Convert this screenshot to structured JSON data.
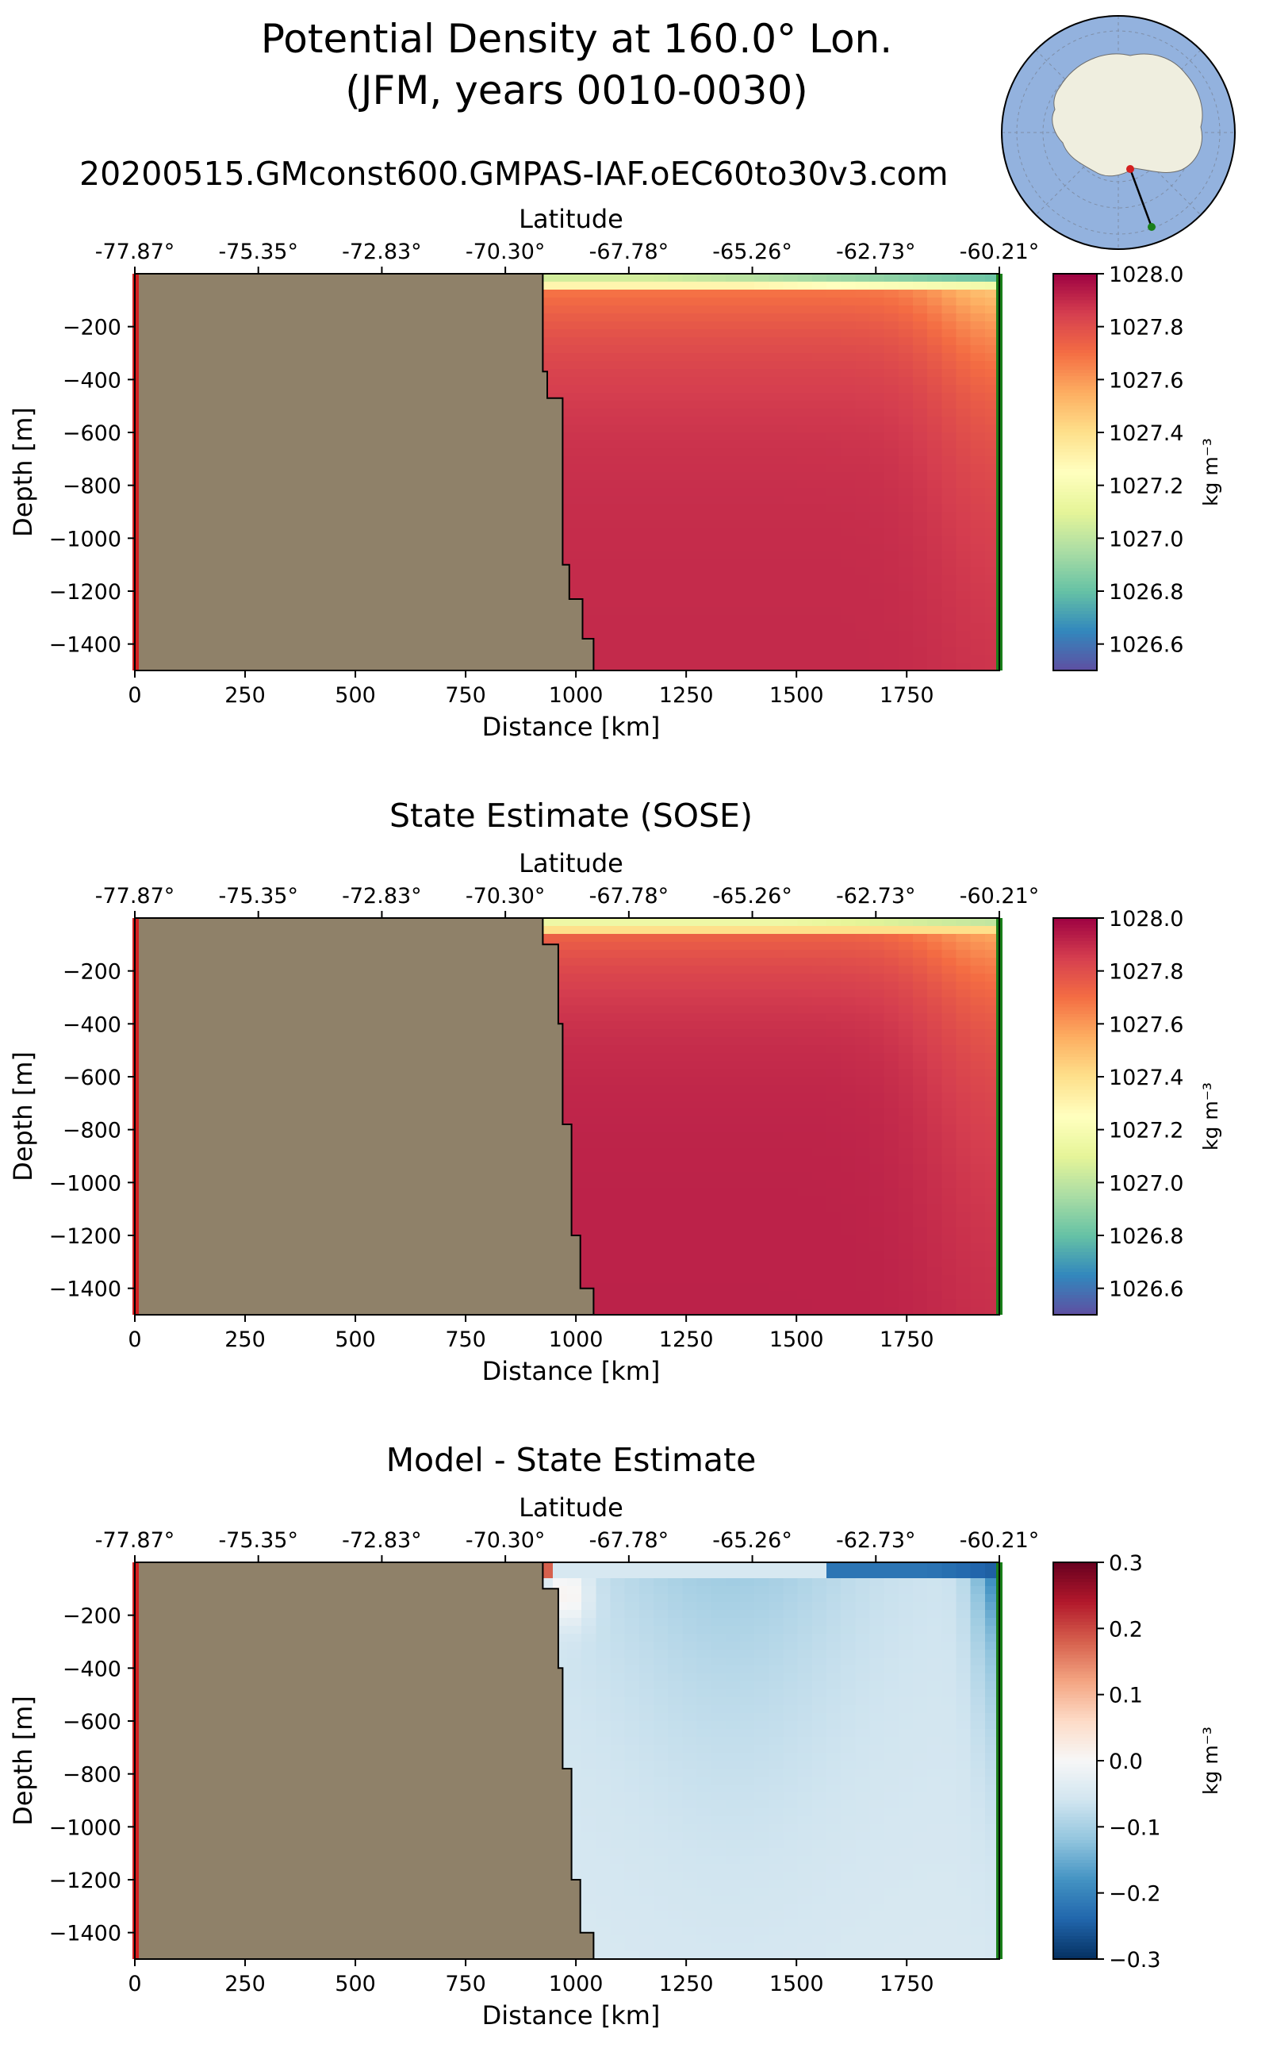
{
  "figure": {
    "title_line1": "Potential Density at 160.0° Lon.",
    "title_line2": "(JFM, years 0010-0030)",
    "subtitle": "20200515.GMconst600.GMPAS-IAF.oEC60to30v3.com"
  },
  "colors": {
    "land": "#8f8169",
    "start_marker": "#d42020",
    "end_marker": "#1a7f1a",
    "map_ocean": "#93b2de",
    "map_land": "#efeedf",
    "spectral": [
      "#5e4fa2",
      "#3288bd",
      "#66c2a5",
      "#abdda4",
      "#e6f598",
      "#ffffbf",
      "#fee08b",
      "#fdae61",
      "#f46d43",
      "#d53e4f",
      "#9e0142"
    ],
    "rdbu_r": [
      "#053061",
      "#2166ac",
      "#4393c3",
      "#92c5de",
      "#d1e5f0",
      "#f7f7f7",
      "#fddbc7",
      "#f4a582",
      "#d6604d",
      "#b2182b",
      "#67001f"
    ]
  },
  "icons": {
    "map": "antarctica-polar-map-icon"
  },
  "chart_data": [
    {
      "type": "heatmap",
      "title": "",
      "xlabel": "Distance [km]",
      "ylabel": "Depth [m]",
      "top_xlabel": "Latitude",
      "xlim": [
        0,
        1960
      ],
      "ylim": [
        -1500,
        0
      ],
      "xticks": [
        0,
        250,
        500,
        750,
        1000,
        1250,
        1500,
        1750
      ],
      "xtick_labels": [
        "0",
        "250",
        "500",
        "750",
        "1000",
        "1250",
        "1500",
        "1750"
      ],
      "yticks": [
        -200,
        -400,
        -600,
        -800,
        -1000,
        -1200,
        -1400
      ],
      "ytick_labels": [
        "−200",
        "−400",
        "−600",
        "−800",
        "−1000",
        "−1200",
        "−1400"
      ],
      "top_ticks": [
        0,
        280,
        560,
        840,
        1120,
        1400,
        1680,
        1960
      ],
      "top_tick_labels": [
        "-77.87°",
        "-75.35°",
        "-72.83°",
        "-70.30°",
        "-67.78°",
        "-65.26°",
        "-62.73°",
        "-60.21°"
      ],
      "bathymetry": [
        [
          0,
          0
        ],
        [
          925,
          0
        ],
        [
          925,
          -370
        ],
        [
          935,
          -370
        ],
        [
          935,
          -470
        ],
        [
          970,
          -470
        ],
        [
          970,
          -1100
        ],
        [
          985,
          -1100
        ],
        [
          985,
          -1230
        ],
        [
          1015,
          -1230
        ],
        [
          1015,
          -1380
        ],
        [
          1040,
          -1380
        ],
        [
          1040,
          -1500
        ],
        [
          0,
          -1500
        ]
      ],
      "field": {
        "kind": "model_density"
      },
      "colorbar": {
        "cmap": "spectral",
        "vmin": 1026.5,
        "vmax": 1028.0,
        "ticks": [
          1026.6,
          1026.8,
          1027.0,
          1027.2,
          1027.4,
          1027.6,
          1027.8,
          1028.0
        ],
        "tick_labels": [
          "1026.6",
          "1026.8",
          "1027.0",
          "1027.2",
          "1027.4",
          "1027.6",
          "1027.8",
          "1028.0"
        ],
        "label": "kg m⁻³"
      }
    },
    {
      "type": "heatmap",
      "title": "State Estimate (SOSE)",
      "xlabel": "Distance [km]",
      "ylabel": "Depth [m]",
      "top_xlabel": "Latitude",
      "xlim": [
        0,
        1960
      ],
      "ylim": [
        -1500,
        0
      ],
      "xticks": [
        0,
        250,
        500,
        750,
        1000,
        1250,
        1500,
        1750
      ],
      "xtick_labels": [
        "0",
        "250",
        "500",
        "750",
        "1000",
        "1250",
        "1500",
        "1750"
      ],
      "yticks": [
        -200,
        -400,
        -600,
        -800,
        -1000,
        -1200,
        -1400
      ],
      "ytick_labels": [
        "−200",
        "−400",
        "−600",
        "−800",
        "−1000",
        "−1200",
        "−1400"
      ],
      "top_ticks": [
        0,
        280,
        560,
        840,
        1120,
        1400,
        1680,
        1960
      ],
      "top_tick_labels": [
        "-77.87°",
        "-75.35°",
        "-72.83°",
        "-70.30°",
        "-67.78°",
        "-65.26°",
        "-62.73°",
        "-60.21°"
      ],
      "bathymetry": [
        [
          0,
          0
        ],
        [
          925,
          0
        ],
        [
          925,
          -100
        ],
        [
          960,
          -100
        ],
        [
          960,
          -400
        ],
        [
          970,
          -400
        ],
        [
          970,
          -780
        ],
        [
          990,
          -780
        ],
        [
          990,
          -1200
        ],
        [
          1010,
          -1200
        ],
        [
          1010,
          -1400
        ],
        [
          1040,
          -1400
        ],
        [
          1040,
          -1500
        ],
        [
          0,
          -1500
        ]
      ],
      "field": {
        "kind": "sose_density"
      },
      "colorbar": {
        "cmap": "spectral",
        "vmin": 1026.5,
        "vmax": 1028.0,
        "ticks": [
          1026.6,
          1026.8,
          1027.0,
          1027.2,
          1027.4,
          1027.6,
          1027.8,
          1028.0
        ],
        "tick_labels": [
          "1026.6",
          "1026.8",
          "1027.0",
          "1027.2",
          "1027.4",
          "1027.6",
          "1027.8",
          "1028.0"
        ],
        "label": "kg m⁻³"
      }
    },
    {
      "type": "heatmap",
      "title": "Model - State Estimate",
      "xlabel": "Distance [km]",
      "ylabel": "Depth [m]",
      "top_xlabel": "Latitude",
      "xlim": [
        0,
        1960
      ],
      "ylim": [
        -1500,
        0
      ],
      "xticks": [
        0,
        250,
        500,
        750,
        1000,
        1250,
        1500,
        1750
      ],
      "xtick_labels": [
        "0",
        "250",
        "500",
        "750",
        "1000",
        "1250",
        "1500",
        "1750"
      ],
      "yticks": [
        -200,
        -400,
        -600,
        -800,
        -1000,
        -1200,
        -1400
      ],
      "ytick_labels": [
        "−200",
        "−400",
        "−600",
        "−800",
        "−1000",
        "−1200",
        "−1400"
      ],
      "top_ticks": [
        0,
        280,
        560,
        840,
        1120,
        1400,
        1680,
        1960
      ],
      "top_tick_labels": [
        "-77.87°",
        "-75.35°",
        "-72.83°",
        "-70.30°",
        "-67.78°",
        "-65.26°",
        "-62.73°",
        "-60.21°"
      ],
      "bathymetry": [
        [
          0,
          0
        ],
        [
          925,
          0
        ],
        [
          925,
          -100
        ],
        [
          960,
          -100
        ],
        [
          960,
          -400
        ],
        [
          970,
          -400
        ],
        [
          970,
          -780
        ],
        [
          990,
          -780
        ],
        [
          990,
          -1200
        ],
        [
          1010,
          -1200
        ],
        [
          1010,
          -1400
        ],
        [
          1040,
          -1400
        ],
        [
          1040,
          -1500
        ],
        [
          0,
          -1500
        ]
      ],
      "field": {
        "kind": "difference"
      },
      "colorbar": {
        "cmap": "rdbu_r",
        "vmin": -0.3,
        "vmax": 0.3,
        "ticks": [
          -0.3,
          -0.2,
          -0.1,
          0.0,
          0.1,
          0.2,
          0.3
        ],
        "tick_labels": [
          "−0.3",
          "−0.2",
          "−0.1",
          "0.0",
          "0.1",
          "0.2",
          "0.3"
        ],
        "label": "kg m⁻³"
      }
    }
  ]
}
